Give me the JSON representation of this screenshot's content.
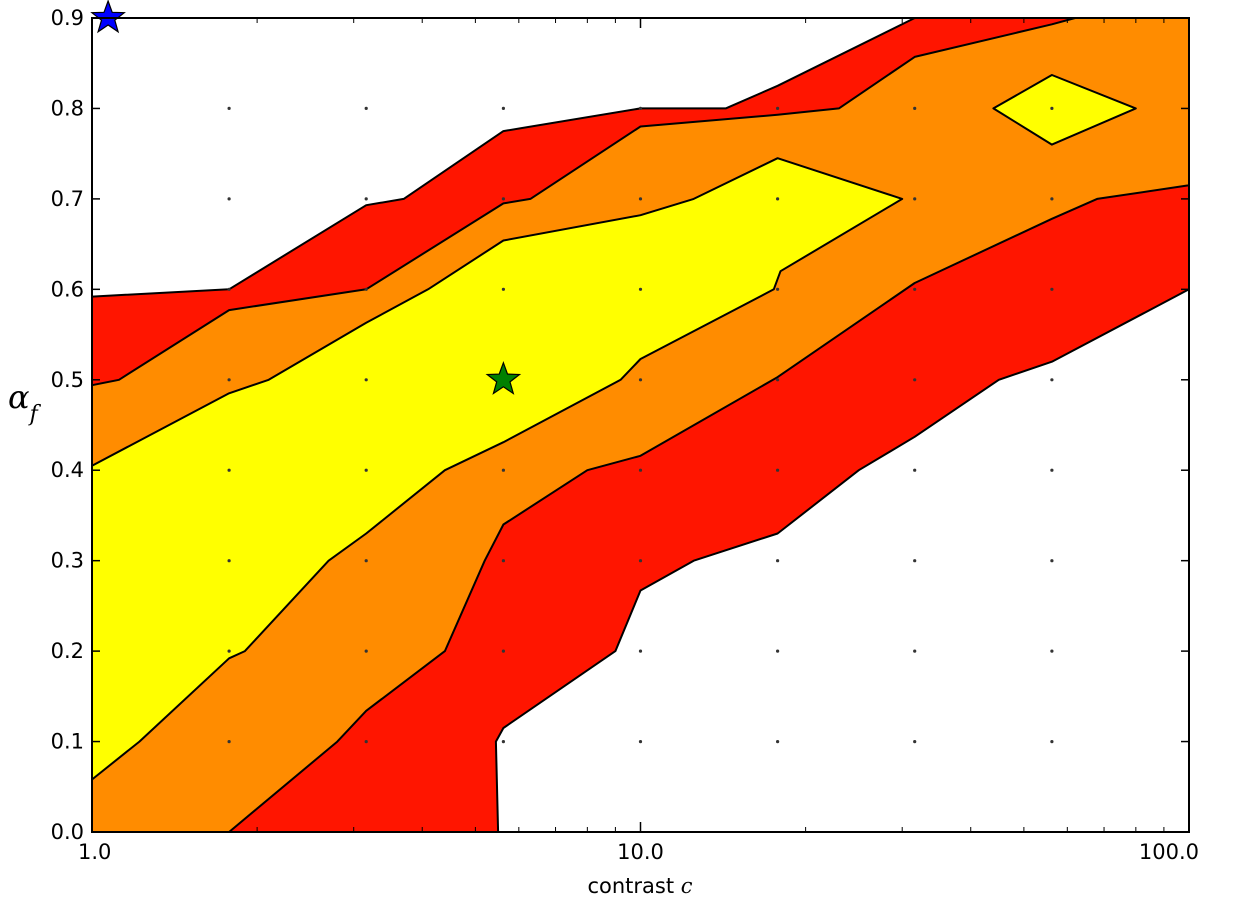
{
  "chart_data": {
    "type": "contour",
    "title": "",
    "xlabel": "contrast",
    "xlabel_symbol": "c",
    "ylabel_symbol": "α",
    "ylabel_subscript": "f",
    "xscale": "log",
    "xlim": [
      1.0,
      100.0
    ],
    "ylim": [
      0.0,
      0.9
    ],
    "x_ticks": [
      1.0,
      10.0,
      100.0
    ],
    "x_tick_labels": [
      "1.0",
      "10.0",
      "100.0"
    ],
    "y_ticks": [
      0.0,
      0.1,
      0.2,
      0.3,
      0.4,
      0.5,
      0.6,
      0.7,
      0.8,
      0.9
    ],
    "y_tick_labels": [
      "0.0",
      "0.1",
      "0.2",
      "0.3",
      "0.4",
      "0.5",
      "0.6",
      "0.7",
      "0.8",
      "0.9"
    ],
    "grid_x": [
      1.778,
      3.162,
      5.623,
      10.0,
      17.78,
      31.62,
      56.23
    ],
    "grid_y": [
      0.1,
      0.2,
      0.3,
      0.4,
      0.5,
      0.6,
      0.7,
      0.8
    ],
    "levels": [
      {
        "color": "#ff1500",
        "polygons": [
          [
            [
              1.0,
              0.592
            ],
            [
              1.778,
              0.6
            ],
            [
              3.162,
              0.693
            ],
            [
              3.7,
              0.7
            ],
            [
              5.623,
              0.775
            ],
            [
              10.0,
              0.8
            ],
            [
              14.3,
              0.8
            ],
            [
              17.78,
              0.825
            ],
            [
              31.62,
              0.9
            ],
            [
              100.0,
              0.9
            ],
            [
              100.0,
              0.6
            ],
            [
              56.23,
              0.52
            ],
            [
              45.0,
              0.5
            ],
            [
              31.62,
              0.437
            ],
            [
              25.0,
              0.4
            ],
            [
              17.78,
              0.33
            ],
            [
              12.5,
              0.3
            ],
            [
              10.0,
              0.267
            ],
            [
              9.0,
              0.2
            ],
            [
              5.623,
              0.115
            ],
            [
              5.45,
              0.1
            ],
            [
              5.5,
              0.0
            ],
            [
              1.778,
              0.0
            ],
            [
              1.0,
              0.0
            ]
          ]
        ]
      },
      {
        "color": "#ff8c00",
        "polygons": [
          [
            [
              1.0,
              0.494
            ],
            [
              1.12,
              0.5
            ],
            [
              1.778,
              0.577
            ],
            [
              3.162,
              0.6
            ],
            [
              5.623,
              0.695
            ],
            [
              6.3,
              0.7
            ],
            [
              10.0,
              0.78
            ],
            [
              17.78,
              0.793
            ],
            [
              23.0,
              0.8
            ],
            [
              31.62,
              0.857
            ],
            [
              56.23,
              0.893
            ],
            [
              62.0,
              0.9
            ],
            [
              100.0,
              0.9
            ],
            [
              100.0,
              0.715
            ],
            [
              68.0,
              0.7
            ],
            [
              56.23,
              0.678
            ],
            [
              31.62,
              0.607
            ],
            [
              17.78,
              0.503
            ],
            [
              10.0,
              0.416
            ],
            [
              8.0,
              0.4
            ],
            [
              5.623,
              0.34
            ],
            [
              5.2,
              0.3
            ],
            [
              4.4,
              0.2
            ],
            [
              3.162,
              0.134
            ],
            [
              2.8,
              0.1
            ],
            [
              1.778,
              0.0
            ],
            [
              1.0,
              0.0
            ]
          ]
        ]
      },
      {
        "color": "#ffff00",
        "polygons": [
          [
            [
              1.0,
              0.405
            ],
            [
              1.778,
              0.485
            ],
            [
              2.1,
              0.5
            ],
            [
              3.162,
              0.563
            ],
            [
              4.1,
              0.6
            ],
            [
              5.623,
              0.654
            ],
            [
              10.0,
              0.682
            ],
            [
              12.5,
              0.7
            ],
            [
              17.78,
              0.745
            ],
            [
              30.0,
              0.7
            ],
            [
              18.0,
              0.62
            ],
            [
              17.5,
              0.6
            ],
            [
              10.0,
              0.523
            ],
            [
              9.2,
              0.5
            ],
            [
              5.623,
              0.431
            ],
            [
              4.4,
              0.4
            ],
            [
              3.162,
              0.33
            ],
            [
              2.7,
              0.3
            ],
            [
              1.9,
              0.2
            ],
            [
              1.778,
              0.192
            ],
            [
              1.22,
              0.1
            ],
            [
              1.0,
              0.058
            ]
          ],
          [
            [
              44.0,
              0.8
            ],
            [
              56.23,
              0.837
            ],
            [
              80.0,
              0.8
            ],
            [
              56.23,
              0.76
            ]
          ]
        ]
      }
    ],
    "markers": [
      {
        "x": 1.07,
        "y": 0.9,
        "color": "#0000ff"
      },
      {
        "x": 5.623,
        "y": 0.5,
        "color": "#008000"
      }
    ]
  }
}
